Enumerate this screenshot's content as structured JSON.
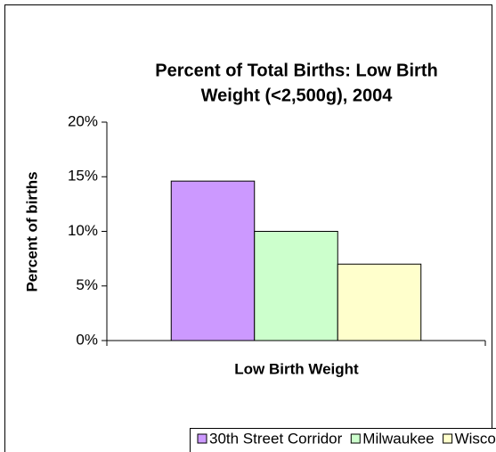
{
  "chart_data": {
    "type": "bar",
    "title": [
      "Percent of Total Births: Low Birth",
      "Weight (<2,500g), 2004"
    ],
    "y_label": "Percent of births",
    "x_label": "Low Birth Weight",
    "categories": [
      "Low Birth Weight"
    ],
    "series": [
      {
        "name": "30th Street Corridor",
        "color": "#cc99ff",
        "values": [
          14.6
        ]
      },
      {
        "name": "Milwaukee",
        "color": "#ccffcc",
        "values": [
          10.0
        ]
      },
      {
        "name": "Wisconsin",
        "color": "#ffffcc",
        "values": [
          7.0
        ]
      }
    ],
    "ylim": [
      0,
      20
    ],
    "yticks": [
      {
        "value": 0,
        "label": "0%"
      },
      {
        "value": 5,
        "label": "5%"
      },
      {
        "value": 10,
        "label": "10%"
      },
      {
        "value": 15,
        "label": "15%"
      },
      {
        "value": 20,
        "label": "20%"
      }
    ],
    "grid": false,
    "legend": "bottom"
  }
}
